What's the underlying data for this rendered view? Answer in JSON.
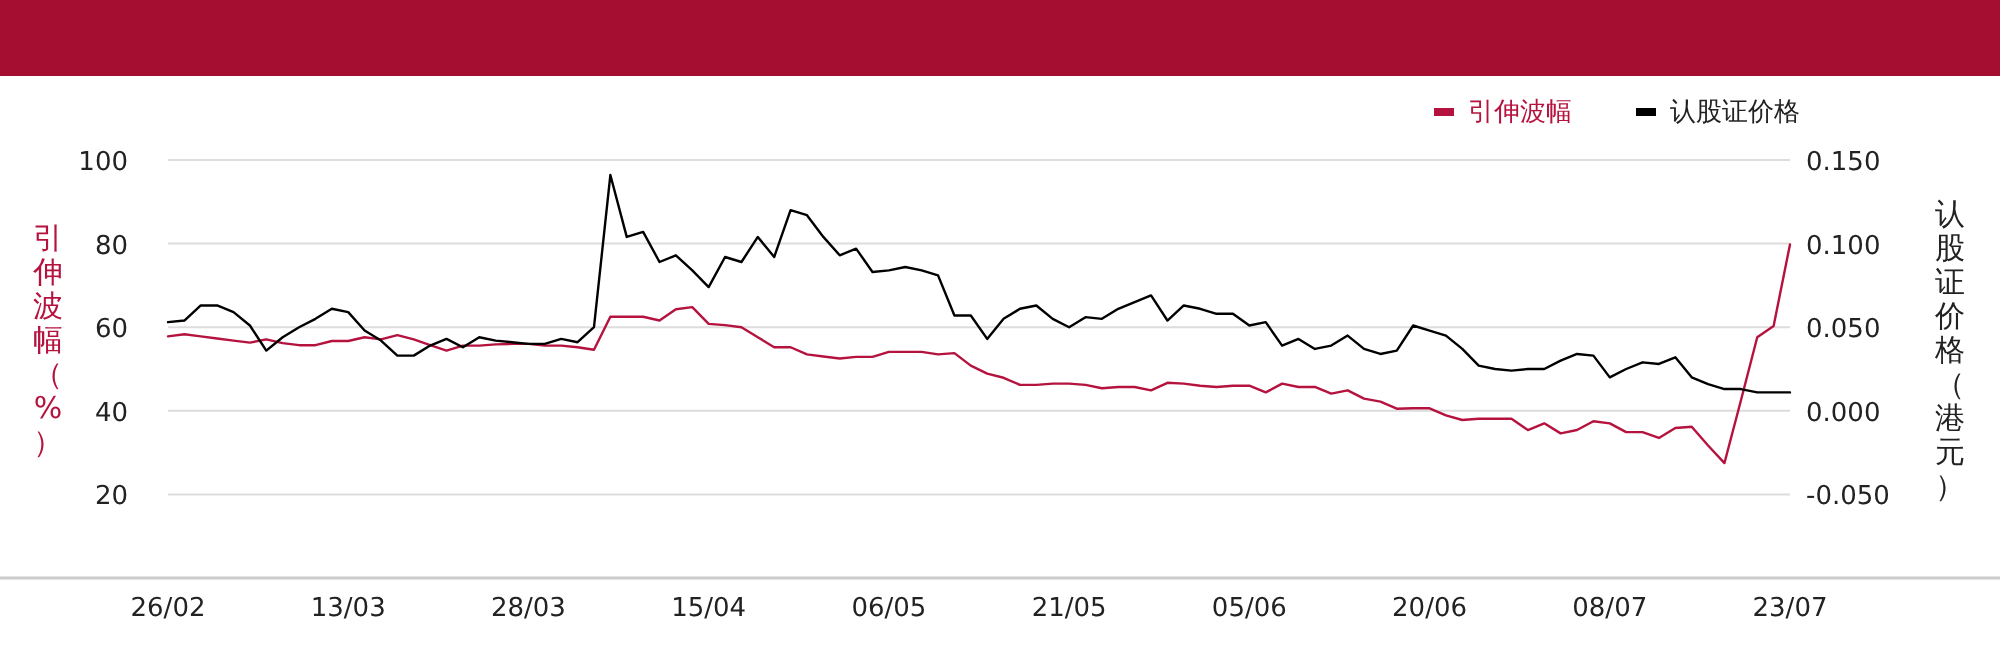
{
  "chart_data": {
    "type": "line",
    "ylabel": "引伸波幅（%）",
    "y2label": "认股证价格（港元）",
    "categories": [
      "26/02",
      null,
      null,
      null,
      null,
      null,
      null,
      null,
      null,
      null,
      null,
      "13/03",
      null,
      null,
      null,
      null,
      null,
      null,
      null,
      null,
      null,
      null,
      "28/03",
      null,
      null,
      null,
      null,
      null,
      null,
      null,
      null,
      null,
      null,
      "15/04",
      null,
      null,
      null,
      null,
      null,
      null,
      null,
      null,
      null,
      null,
      "06/05",
      null,
      null,
      null,
      null,
      null,
      null,
      null,
      null,
      null,
      null,
      "21/05",
      null,
      null,
      null,
      null,
      null,
      null,
      null,
      null,
      null,
      null,
      "05/06",
      null,
      null,
      null,
      null,
      null,
      null,
      null,
      null,
      null,
      null,
      "20/06",
      null,
      null,
      null,
      null,
      null,
      null,
      null,
      null,
      null,
      null,
      "08/07",
      null,
      null,
      null,
      null,
      null,
      null,
      null,
      null,
      null,
      null,
      "23/07"
    ],
    "ylim": [
      0,
      100
    ],
    "yticks": [
      20,
      40,
      60,
      80,
      100
    ],
    "y2lim": [
      -0.1,
      0.15
    ],
    "y2ticks": [
      {
        "value": -0.05,
        "label": "-0.050"
      },
      {
        "value": 0,
        "label": "0.000"
      },
      {
        "value": 0.05,
        "label": "0.050"
      },
      {
        "value": 0.1,
        "label": "0.100"
      },
      {
        "value": 0.15,
        "label": "0.150"
      }
    ],
    "grid": "y",
    "legend": "top right",
    "marker": "none",
    "line_style": "solid",
    "series": [
      {
        "name": "引伸波幅",
        "color": "#b5123e",
        "values": [
          57.8,
          58.3,
          57.8,
          57.3,
          56.8,
          56.3,
          57.1,
          56.2,
          55.7,
          55.7,
          56.7,
          56.7,
          57.6,
          57.1,
          58.1,
          57.1,
          55.7,
          54.4,
          55.6,
          55.6,
          55.9,
          56.0,
          56.0,
          55.6,
          55.6,
          55.2,
          54.6,
          62.5,
          62.5,
          62.5,
          61.6,
          64.3,
          64.8,
          60.8,
          60.5,
          60.0,
          57.6,
          55.2,
          55.2,
          53.5,
          53.0,
          52.5,
          52.9,
          52.9,
          54.1,
          54.1,
          54.1,
          53.5,
          53.8,
          50.8,
          48.9,
          47.9,
          46.2,
          46.2,
          46.5,
          46.5,
          46.2,
          45.4,
          45.7,
          45.7,
          44.9,
          46.7,
          46.5,
          46.0,
          45.7,
          46.0,
          46.0,
          44.4,
          46.5,
          45.7,
          45.7,
          44.1,
          44.9,
          42.9,
          42.2,
          40.5,
          40.6,
          40.6,
          38.9,
          37.8,
          38.1,
          38.1,
          38.1,
          35.4,
          37.0,
          34.6,
          35.4,
          37.5,
          37.0,
          34.9,
          34.9,
          33.5,
          35.9,
          36.2,
          31.7,
          27.5,
          42.4,
          57.6,
          60.3,
          79.8
        ]
      },
      {
        "name": "认股证价格",
        "color": "#000000",
        "axis": "y2",
        "values": [
          0.053,
          0.054,
          0.063,
          0.063,
          0.059,
          0.051,
          0.036,
          0.044,
          0.05,
          0.055,
          0.061,
          0.059,
          0.048,
          0.042,
          0.033,
          0.033,
          0.039,
          0.043,
          0.038,
          0.044,
          0.042,
          0.041,
          0.04,
          0.04,
          0.043,
          0.041,
          0.05,
          0.141,
          0.104,
          0.107,
          0.089,
          0.093,
          0.084,
          0.074,
          0.092,
          0.089,
          0.104,
          0.092,
          0.12,
          0.117,
          0.104,
          0.093,
          0.097,
          0.083,
          0.084,
          0.086,
          0.084,
          0.081,
          0.057,
          0.057,
          0.043,
          0.055,
          0.061,
          0.063,
          0.055,
          0.05,
          0.056,
          0.055,
          0.061,
          0.065,
          0.069,
          0.054,
          0.063,
          0.061,
          0.058,
          0.058,
          0.051,
          0.053,
          0.039,
          0.043,
          0.037,
          0.039,
          0.045,
          0.037,
          0.034,
          0.036,
          0.051,
          0.048,
          0.045,
          0.037,
          0.027,
          0.025,
          0.024,
          0.025,
          0.025,
          0.03,
          0.034,
          0.033,
          0.02,
          0.025,
          0.029,
          0.028,
          0.032,
          0.02,
          0.016,
          0.013,
          0.013,
          0.011,
          0.011,
          0.011
        ]
      }
    ]
  }
}
